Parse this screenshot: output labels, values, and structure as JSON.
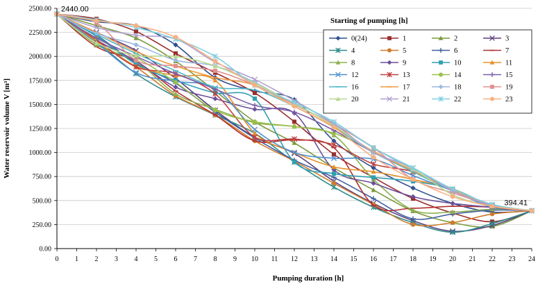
{
  "chart_data": {
    "type": "line",
    "title": "",
    "xlabel": "Pumping duration [h]",
    "ylabel": "Water reservoir volume V [m³]",
    "xlim": [
      0,
      24
    ],
    "ylim": [
      0,
      2500
    ],
    "x_ticks": [
      "0",
      "1",
      "2",
      "3",
      "4",
      "5",
      "6",
      "7",
      "8",
      "9",
      "10",
      "11",
      "12",
      "13",
      "14",
      "15",
      "16",
      "17",
      "18",
      "19",
      "20",
      "21",
      "22",
      "23",
      "24"
    ],
    "y_ticks": [
      "0.00",
      "250.00",
      "500.00",
      "750.00",
      "1000.00",
      "1250.00",
      "1500.00",
      "1750.00",
      "2000.00",
      "2250.00",
      "2500.00"
    ],
    "legend_title": "Starting of pumping  [h]",
    "legend_position": "top-right",
    "grid": "horizontal",
    "annotations": [
      {
        "text": "2440.00",
        "x": 0,
        "y": 2440
      },
      {
        "text": "394.41",
        "x": 24,
        "y": 394.41
      }
    ],
    "marker_x": [
      0,
      2,
      4,
      6,
      8,
      10,
      12,
      14,
      16,
      18,
      20,
      22,
      24
    ],
    "series": [
      {
        "name": "0(24)",
        "color": "#2f4f8f",
        "marker": "diamond",
        "values": [
          2440,
          2360,
          2320,
          2120,
          1780,
          1640,
          1550,
          1120,
          840,
          630,
          470,
          380,
          394
        ]
      },
      {
        "name": "1",
        "color": "#9b2d2d",
        "marker": "square",
        "values": [
          2440,
          2390,
          2260,
          2030,
          1830,
          1620,
          1320,
          980,
          740,
          520,
          370,
          280,
          394
        ]
      },
      {
        "name": "2",
        "color": "#7a9a3a",
        "marker": "triangle",
        "values": [
          2440,
          2320,
          2190,
          1950,
          1640,
          1320,
          1100,
          840,
          610,
          390,
          270,
          230,
          394
        ]
      },
      {
        "name": "3",
        "color": "#5b3f7f",
        "marker": "x",
        "values": [
          2440,
          2250,
          2060,
          1770,
          1440,
          1160,
          990,
          700,
          470,
          290,
          180,
          240,
          394
        ]
      },
      {
        "name": "4",
        "color": "#2e8b8b",
        "marker": "star",
        "values": [
          2440,
          2150,
          1820,
          1580,
          1390,
          1200,
          900,
          640,
          430,
          270,
          170,
          260,
          394
        ]
      },
      {
        "name": "5",
        "color": "#d07a2a",
        "marker": "circle",
        "values": [
          2440,
          2150,
          1890,
          1590,
          1390,
          1120,
          910,
          680,
          460,
          250,
          270,
          360,
          394
        ]
      },
      {
        "name": "6",
        "color": "#3f5fa0",
        "marker": "plus",
        "values": [
          2440,
          2220,
          1930,
          1720,
          1420,
          1150,
          920,
          740,
          520,
          310,
          360,
          400,
          394
        ]
      },
      {
        "name": "7",
        "color": "#b03030",
        "marker": "dash",
        "values": [
          2440,
          2100,
          1950,
          1640,
          1390,
          1120,
          1130,
          1050,
          450,
          420,
          440,
          430,
          394
        ]
      },
      {
        "name": "8",
        "color": "#8fb050",
        "marker": "triangle",
        "values": [
          2440,
          2120,
          1950,
          1610,
          1450,
          1310,
          1270,
          1180,
          720,
          400,
          380,
          410,
          394
        ]
      },
      {
        "name": "9",
        "color": "#6b4f9a",
        "marker": "diamond",
        "values": [
          2440,
          2170,
          1950,
          1680,
          1560,
          1450,
          1410,
          820,
          680,
          540,
          470,
          430,
          394
        ]
      },
      {
        "name": "10",
        "color": "#2fa0b0",
        "marker": "square",
        "values": [
          2440,
          2210,
          1920,
          1750,
          1620,
          1560,
          900,
          780,
          740,
          700,
          620,
          450,
          394
        ]
      },
      {
        "name": "11",
        "color": "#e8902a",
        "marker": "triangle",
        "values": [
          2440,
          2160,
          1900,
          1800,
          1750,
          1200,
          1000,
          850,
          800,
          720,
          620,
          440,
          394
        ]
      },
      {
        "name": "12",
        "color": "#4f8fcf",
        "marker": "x",
        "values": [
          2440,
          2140,
          1830,
          1740,
          1670,
          1240,
          1000,
          940,
          930,
          760,
          600,
          430,
          394
        ]
      },
      {
        "name": "13",
        "color": "#c04040",
        "marker": "star",
        "values": [
          2440,
          2170,
          1890,
          1820,
          1610,
          1160,
          1140,
          1080,
          880,
          800,
          620,
          440,
          394
        ]
      },
      {
        "name": "14",
        "color": "#9ac04a",
        "marker": "circle",
        "values": [
          2440,
          2190,
          1990,
          1730,
          1440,
          1320,
          1270,
          1200,
          1010,
          800,
          620,
          450,
          394
        ]
      },
      {
        "name": "15",
        "color": "#7a5faa",
        "marker": "plus",
        "values": [
          2440,
          2190,
          2000,
          1820,
          1660,
          1490,
          1420,
          1230,
          1000,
          800,
          600,
          450,
          394
        ]
      },
      {
        "name": "16",
        "color": "#4fb8c8",
        "marker": "dash",
        "values": [
          2440,
          2230,
          2030,
          1850,
          1680,
          1650,
          1480,
          1260,
          1000,
          800,
          600,
          450,
          394
        ]
      },
      {
        "name": "17",
        "color": "#f09a40",
        "marker": "dash",
        "values": [
          2440,
          2250,
          2050,
          1900,
          1780,
          1700,
          1480,
          1270,
          1010,
          810,
          610,
          450,
          394
        ]
      },
      {
        "name": "18",
        "color": "#9ab8e0",
        "marker": "diamond",
        "values": [
          2440,
          2240,
          2120,
          1960,
          1900,
          1730,
          1500,
          1300,
          1050,
          820,
          620,
          460,
          394
        ]
      },
      {
        "name": "19",
        "color": "#e09090",
        "marker": "square",
        "values": [
          2440,
          2350,
          1960,
          1900,
          1850,
          1700,
          1500,
          1290,
          1050,
          720,
          580,
          450,
          394
        ]
      },
      {
        "name": "20",
        "color": "#b8d890",
        "marker": "triangle",
        "values": [
          2440,
          2140,
          2010,
          2000,
          1900,
          1720,
          1510,
          1280,
          1000,
          830,
          560,
          440,
          394
        ]
      },
      {
        "name": "21",
        "color": "#b0a0d0",
        "marker": "x",
        "values": [
          2440,
          2300,
          2220,
          2180,
          1940,
          1760,
          1540,
          1300,
          1000,
          840,
          600,
          450,
          394
        ]
      },
      {
        "name": "22",
        "color": "#80d0e0",
        "marker": "star",
        "values": [
          2440,
          2380,
          2300,
          2180,
          2000,
          1700,
          1520,
          1320,
          1050,
          840,
          620,
          460,
          394
        ]
      },
      {
        "name": "23",
        "color": "#f8b080",
        "marker": "circle",
        "values": [
          2440,
          2370,
          2320,
          2200,
          1950,
          1700,
          1480,
          1260,
          950,
          720,
          540,
          440,
          394
        ]
      }
    ]
  }
}
